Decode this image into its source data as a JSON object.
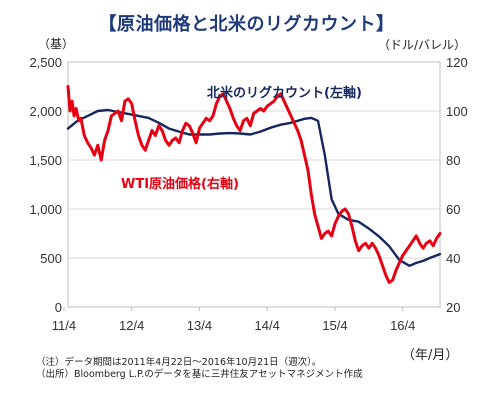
{
  "title": "【原油価格と北米のリグカウント】",
  "left_unit": "（基）",
  "right_unit": "（ドル/バレル）",
  "x_unit": "（年/月）",
  "footnotes": [
    "（注）データ期間は2011年4月22日～2016年10月21日（週次）。",
    "（出所）Bloomberg L.P.のデータを基に三井住友アセットマネジメント作成"
  ],
  "colors": {
    "rig": "#14285f",
    "wti": "#e60012",
    "rig_label": "#14285f",
    "wti_label": "#e60012",
    "grid": "#d9d9d9"
  },
  "chart_data": {
    "type": "line",
    "x_labels": [
      "11/4",
      "12/4",
      "13/4",
      "14/4",
      "15/4",
      "16/4"
    ],
    "x_range": [
      2011.31,
      2016.8
    ],
    "left_axis": {
      "ticks": [
        "0",
        "500",
        "1,000",
        "1,500",
        "2,000",
        "2,500"
      ],
      "ylim": [
        0,
        2500
      ]
    },
    "right_axis": {
      "ticks": [
        "20",
        "40",
        "60",
        "80",
        "100",
        "120"
      ],
      "ylim": [
        20,
        120
      ]
    },
    "series": [
      {
        "name": "北米のリグカウント(左軸)",
        "axis": "left",
        "x": [
          2011.31,
          2011.45,
          2011.6,
          2011.75,
          2011.9,
          2012.05,
          2012.2,
          2012.35,
          2012.5,
          2012.65,
          2012.8,
          2012.95,
          2013.1,
          2013.25,
          2013.4,
          2013.55,
          2013.7,
          2013.85,
          2014.0,
          2014.15,
          2014.3,
          2014.45,
          2014.6,
          2014.7,
          2014.8,
          2014.9,
          2015.0,
          2015.1,
          2015.2,
          2015.3,
          2015.45,
          2015.6,
          2015.75,
          2015.9,
          2016.05,
          2016.2,
          2016.35,
          2016.45,
          2016.55,
          2016.65,
          2016.8
        ],
        "values": [
          1820,
          1900,
          1950,
          2000,
          2010,
          1990,
          1970,
          1950,
          1930,
          1880,
          1820,
          1790,
          1760,
          1760,
          1760,
          1770,
          1775,
          1770,
          1760,
          1790,
          1830,
          1860,
          1880,
          1900,
          1920,
          1930,
          1900,
          1550,
          1100,
          950,
          890,
          870,
          800,
          720,
          620,
          480,
          420,
          450,
          470,
          500,
          540
        ]
      },
      {
        "name": "WTI原油価格(右軸)",
        "axis": "right",
        "x": [
          2011.31,
          2011.34,
          2011.37,
          2011.4,
          2011.43,
          2011.47,
          2011.5,
          2011.55,
          2011.6,
          2011.65,
          2011.7,
          2011.75,
          2011.8,
          2011.85,
          2011.9,
          2011.95,
          2012.0,
          2012.05,
          2012.1,
          2012.15,
          2012.2,
          2012.25,
          2012.3,
          2012.35,
          2012.4,
          2012.45,
          2012.5,
          2012.55,
          2012.6,
          2012.65,
          2012.7,
          2012.75,
          2012.8,
          2012.85,
          2012.9,
          2012.95,
          2013.0,
          2013.05,
          2013.1,
          2013.15,
          2013.2,
          2013.25,
          2013.3,
          2013.35,
          2013.4,
          2013.45,
          2013.5,
          2013.55,
          2013.6,
          2013.65,
          2013.7,
          2013.75,
          2013.8,
          2013.85,
          2013.9,
          2013.95,
          2014.0,
          2014.05,
          2014.1,
          2014.15,
          2014.2,
          2014.25,
          2014.3,
          2014.35,
          2014.4,
          2014.45,
          2014.5,
          2014.55,
          2014.6,
          2014.65,
          2014.7,
          2014.75,
          2014.8,
          2014.85,
          2014.9,
          2014.95,
          2015.0,
          2015.05,
          2015.1,
          2015.15,
          2015.2,
          2015.25,
          2015.3,
          2015.35,
          2015.4,
          2015.45,
          2015.5,
          2015.55,
          2015.6,
          2015.65,
          2015.7,
          2015.75,
          2015.8,
          2015.85,
          2015.9,
          2015.95,
          2016.0,
          2016.05,
          2016.1,
          2016.15,
          2016.2,
          2016.25,
          2016.3,
          2016.35,
          2016.4,
          2016.45,
          2016.5,
          2016.55,
          2016.6,
          2016.65,
          2016.7,
          2016.75,
          2016.8
        ],
        "values": [
          110,
          100,
          104,
          98,
          101,
          96,
          97,
          90,
          87,
          85,
          82,
          86,
          80,
          88,
          92,
          98,
          99,
          100,
          96,
          104,
          105,
          103,
          96,
          90,
          86,
          84,
          88,
          92,
          90,
          94,
          92,
          88,
          86,
          88,
          89,
          87,
          92,
          95,
          94,
          91,
          87,
          93,
          95,
          97,
          96,
          98,
          103,
          106,
          107,
          104,
          101,
          97,
          94,
          92,
          96,
          97,
          94,
          99,
          100,
          101,
          100,
          102,
          103,
          104,
          106,
          107,
          104,
          101,
          98,
          95,
          92,
          88,
          82,
          76,
          66,
          58,
          53,
          48,
          50,
          51,
          49,
          54,
          57,
          59,
          60,
          58,
          53,
          47,
          43,
          45,
          46,
          44,
          46,
          44,
          41,
          37,
          33,
          30,
          31,
          35,
          38,
          41,
          43,
          45,
          47,
          49,
          46,
          44,
          46,
          47,
          45,
          48,
          50
        ]
      }
    ]
  }
}
